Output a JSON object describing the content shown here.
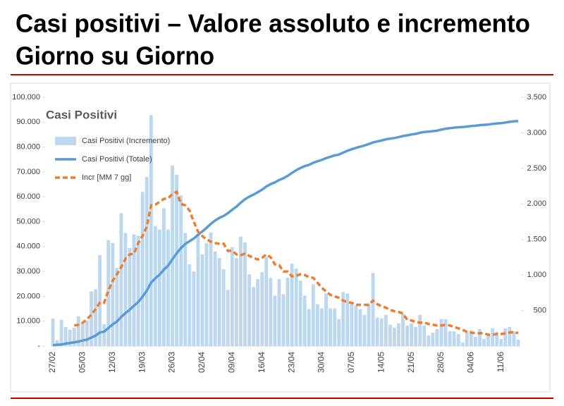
{
  "slide_title": [
    "Casi positivi – Valore assoluto e incremento",
    "Giorno su Giorno"
  ],
  "chart_data": {
    "type": "bar_line",
    "title": "Casi Positivi",
    "categories": [
      "27/02",
      null,
      null,
      null,
      null,
      null,
      null,
      "05/03",
      null,
      null,
      null,
      null,
      null,
      null,
      "12/03",
      null,
      null,
      null,
      null,
      null,
      null,
      "19/03",
      null,
      null,
      null,
      null,
      null,
      null,
      "26/03",
      null,
      null,
      null,
      null,
      null,
      null,
      "02/04",
      null,
      null,
      null,
      null,
      null,
      null,
      "09/04",
      null,
      null,
      null,
      null,
      null,
      null,
      "16/04",
      null,
      null,
      null,
      null,
      null,
      null,
      "23/04",
      null,
      null,
      null,
      null,
      null,
      null,
      "30/04",
      null,
      null,
      null,
      null,
      null,
      null,
      "07/05",
      null,
      null,
      null,
      null,
      null,
      null,
      "14/05",
      null,
      null,
      null,
      null,
      null,
      null,
      "21/05",
      null,
      null,
      null,
      null,
      null,
      null,
      "28/05",
      null,
      null,
      null,
      null,
      null,
      null,
      "04/06",
      null,
      null,
      null,
      null,
      null,
      null,
      "11/06",
      null,
      null,
      null,
      null
    ],
    "series": [
      {
        "name": "Casi Positivi (Incremento)",
        "kind": "bar",
        "axis": "y2",
        "color": "#bdd7ee",
        "values": [
          390,
          80,
          370,
          270,
          230,
          260,
          420,
          320,
          360,
          770,
          800,
          1280,
          310,
          1490,
          1450,
          1100,
          1870,
          1590,
          1380,
          1570,
          1550,
          2170,
          2380,
          3250,
          1690,
          1640,
          1940,
          1640,
          2540,
          2410,
          2120,
          1590,
          1150,
          1050,
          1570,
          1290,
          1450,
          1600,
          1330,
          1240,
          1080,
          790,
          1390,
          1240,
          1540,
          1460,
          1010,
          830,
          940,
          1040,
          1250,
          960,
          710,
          940,
          730,
          960,
          1160,
          1090,
          920,
          710,
          520,
          870,
          590,
          530,
          740,
          530,
          530,
          380,
          760,
          740,
          600,
          570,
          520,
          440,
          600,
          1030,
          400,
          390,
          440,
          300,
          260,
          320,
          460,
          290,
          320,
          270,
          440,
          290,
          150,
          190,
          240,
          380,
          380,
          210,
          210,
          170,
          50,
          210,
          220,
          130,
          240,
          100,
          150,
          250,
          200,
          100,
          250,
          270,
          210,
          90
        ]
      },
      {
        "name": "Casi Positivi (Totale)",
        "kind": "line",
        "axis": "y",
        "color": "#5b9bd5",
        "values": [
          400,
          530,
          620,
          980,
          1250,
          1520,
          1820,
          2250,
          2610,
          3420,
          4190,
          5470,
          5790,
          7280,
          8730,
          9820,
          11690,
          13270,
          14650,
          16220,
          17710,
          19880,
          22260,
          25520,
          27210,
          28760,
          30700,
          32350,
          34890,
          37300,
          39420,
          41010,
          42160,
          43210,
          44770,
          46060,
          47520,
          49120,
          50450,
          51530,
          52330,
          53410,
          54800,
          56050,
          57590,
          59050,
          60060,
          60890,
          61830,
          62870,
          64130,
          65080,
          65790,
          66730,
          67460,
          68420,
          69590,
          70680,
          71600,
          72310,
          72820,
          73690,
          74280,
          74810,
          75550,
          76080,
          76620,
          76990,
          77750,
          78500,
          79100,
          79660,
          80180,
          80630,
          81230,
          81850,
          82250,
          82640,
          83080,
          83380,
          83640,
          83960,
          84420,
          84710,
          85030,
          85300,
          85740,
          86020,
          86180,
          86370,
          86610,
          86990,
          87370,
          87580,
          87800,
          87960,
          88010,
          88220,
          88430,
          88560,
          88810,
          88910,
          89060,
          89300,
          89500,
          89600,
          89850,
          90120,
          90330,
          90420
        ]
      },
      {
        "name": "Incr [MM 7 gg]",
        "kind": "dashed-line",
        "axis": "y2",
        "color": "#ed7d31",
        "values": [
          null,
          null,
          null,
          null,
          null,
          290,
          300,
          330,
          380,
          440,
          520,
          610,
          610,
          780,
          920,
          1010,
          1110,
          1230,
          1290,
          1300,
          1450,
          1550,
          1680,
          1980,
          1990,
          2030,
          2070,
          2080,
          2140,
          2170,
          2000,
          1980,
          1910,
          1750,
          1610,
          1550,
          1500,
          1470,
          1450,
          1440,
          1440,
          1340,
          1340,
          1290,
          1280,
          1300,
          1270,
          1240,
          1220,
          1240,
          1290,
          1250,
          1150,
          1140,
          1050,
          1050,
          980,
          990,
          1010,
          1000,
          970,
          960,
          890,
          820,
          770,
          720,
          700,
          680,
          640,
          620,
          610,
          580,
          580,
          580,
          580,
          640,
          590,
          560,
          540,
          510,
          490,
          480,
          460,
          370,
          360,
          340,
          330,
          330,
          310,
          300,
          290,
          290,
          300,
          290,
          270,
          250,
          230,
          200,
          190,
          180,
          180,
          180,
          160,
          160,
          170,
          170,
          180,
          190,
          200,
          180
        ]
      }
    ],
    "ylim": [
      0,
      100000
    ],
    "yticks": [
      {
        "value": 0,
        "label": "-"
      },
      {
        "value": 10000,
        "label": "10.000"
      },
      {
        "value": 20000,
        "label": "20.000"
      },
      {
        "value": 30000,
        "label": "30.000"
      },
      {
        "value": 40000,
        "label": "40.000"
      },
      {
        "value": 50000,
        "label": "50.000"
      },
      {
        "value": 60000,
        "label": "60.000"
      },
      {
        "value": 70000,
        "label": "70.000"
      },
      {
        "value": 80000,
        "label": "80.000"
      },
      {
        "value": 90000,
        "label": "90.000"
      },
      {
        "value": 100000,
        "label": "100.000"
      }
    ],
    "y2lim": [
      0,
      3500
    ],
    "y2ticks": [
      500,
      {
        "value": 1000,
        "label": "1.000"
      },
      {
        "value": 1500,
        "label": "1.500"
      },
      {
        "value": 2000,
        "label": "2.000"
      },
      {
        "value": 2500,
        "label": "2.500"
      },
      {
        "value": 3000,
        "label": "3.000"
      },
      {
        "value": 3500,
        "label": "3.500"
      }
    ],
    "legend": "top-left"
  }
}
